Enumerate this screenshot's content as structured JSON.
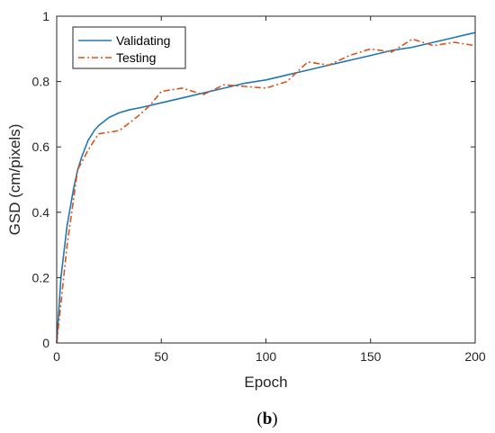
{
  "caption": {
    "open": "(",
    "letter": "b",
    "close": ")"
  },
  "chart_data": {
    "type": "line",
    "xlabel": "Epoch",
    "ylabel": "GSD (cm/pixels)",
    "xlim": [
      0,
      200
    ],
    "ylim": [
      0,
      1
    ],
    "xticks": [
      0,
      50,
      100,
      150,
      200
    ],
    "yticks": [
      0,
      0.2,
      0.4,
      0.6,
      0.8,
      1
    ],
    "xtick_labels": [
      "0",
      "50",
      "100",
      "150",
      "200"
    ],
    "ytick_labels": [
      "0",
      "0.2",
      "0.4",
      "0.6",
      "0.8",
      "1"
    ],
    "grid": false,
    "legend_position": "top-left",
    "series": [
      {
        "name": "Validating",
        "color": "#1f77b4",
        "style": "solid",
        "x": [
          0,
          2,
          5,
          8,
          10,
          12,
          15,
          18,
          20,
          25,
          30,
          35,
          40,
          50,
          60,
          70,
          80,
          90,
          100,
          110,
          120,
          130,
          140,
          150,
          160,
          170,
          180,
          190,
          200
        ],
        "y": [
          0.0,
          0.2,
          0.36,
          0.47,
          0.53,
          0.57,
          0.62,
          0.65,
          0.665,
          0.69,
          0.705,
          0.714,
          0.72,
          0.735,
          0.75,
          0.765,
          0.78,
          0.795,
          0.805,
          0.82,
          0.835,
          0.85,
          0.865,
          0.88,
          0.895,
          0.905,
          0.92,
          0.935,
          0.95
        ]
      },
      {
        "name": "Testing",
        "color": "#d95319",
        "style": "dashdot",
        "x": [
          0,
          5,
          10,
          15,
          20,
          25,
          30,
          35,
          40,
          45,
          50,
          60,
          70,
          80,
          90,
          100,
          110,
          120,
          130,
          140,
          150,
          160,
          170,
          180,
          190,
          200
        ],
        "y": [
          0.0,
          0.3,
          0.53,
          0.59,
          0.64,
          0.645,
          0.65,
          0.675,
          0.7,
          0.73,
          0.77,
          0.78,
          0.76,
          0.79,
          0.785,
          0.78,
          0.8,
          0.86,
          0.85,
          0.88,
          0.9,
          0.89,
          0.93,
          0.91,
          0.92,
          0.91
        ]
      }
    ]
  }
}
